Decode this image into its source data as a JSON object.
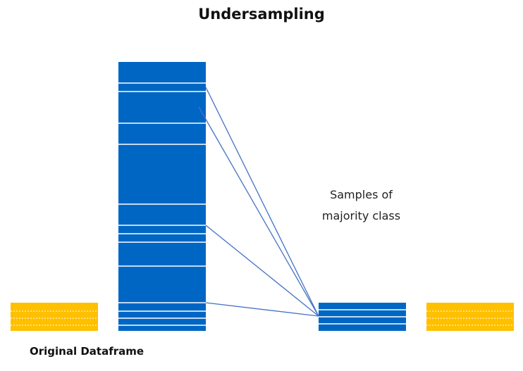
{
  "title": "Undersampling",
  "annotation": {
    "line1": "Samples of",
    "line2": "majority class"
  },
  "footer_label": "Original Dataframe",
  "colors": {
    "majority": "#0066c4",
    "minority": "#ffc000",
    "connector": "#4472c4",
    "separator": "#ffffff"
  }
}
